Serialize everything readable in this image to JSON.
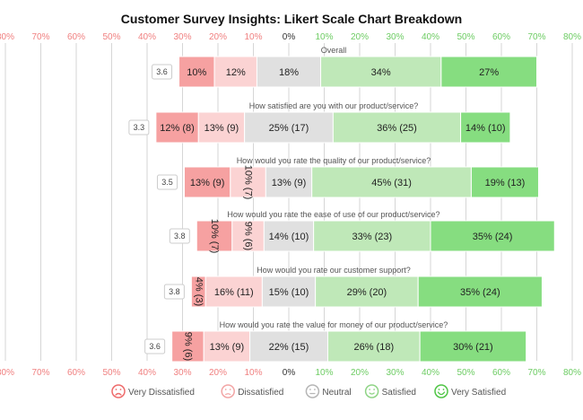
{
  "chart_data": {
    "type": "bar",
    "title": "Customer Survey Insights: Likert Scale Chart Breakdown",
    "xlim": [
      -80,
      80
    ],
    "tick_step": 10,
    "tick_format": "abs-percent",
    "grid": true,
    "legend_position": "bottom",
    "categories": [
      "Very Dissatisfied",
      "Dissatisfied",
      "Neutral",
      "Satisfied",
      "Very Satisfied"
    ],
    "colors": {
      "Very Dissatisfied": "#f6a1a1",
      "Dissatisfied": "#fbd3d3",
      "Neutral": "#e0e0e0",
      "Satisfied": "#bfe8b8",
      "Very Satisfied": "#86dd80",
      "negative_tick": "#f08080",
      "positive_tick": "#6dcc63",
      "zero_tick": "#333333"
    },
    "questions": [
      {
        "label": "Overall",
        "score": "3.6",
        "segments": [
          10,
          12,
          18,
          34,
          27
        ],
        "labels": [
          "10%",
          "12%",
          "18%",
          "34%",
          "27%"
        ]
      },
      {
        "label": "How satisfied are you with our product/service?",
        "score": "3.3",
        "segments": [
          12,
          13,
          25,
          36,
          14
        ],
        "labels": [
          "12% (8)",
          "13% (9)",
          "25% (17)",
          "36% (25)",
          "14% (10)"
        ]
      },
      {
        "label": "How would you rate the quality of our product/service?",
        "score": "3.5",
        "segments": [
          13,
          10,
          13,
          45,
          19
        ],
        "labels": [
          "13% (9)",
          "10% (7)",
          "13% (9)",
          "45% (31)",
          "19% (13)"
        ]
      },
      {
        "label": "How would you rate the ease of use of our product/service?",
        "score": "3.8",
        "segments": [
          10,
          9,
          14,
          33,
          35
        ],
        "labels": [
          "10% (7)",
          "9% (6)",
          "14% (10)",
          "33% (23)",
          "35% (24)"
        ]
      },
      {
        "label": "How would you rate our customer support?",
        "score": "3.8",
        "segments": [
          4,
          16,
          15,
          29,
          35
        ],
        "labels": [
          "4% (3)",
          "16% (11)",
          "15% (10)",
          "29% (20)",
          "35% (24)"
        ]
      },
      {
        "label": "How would you rate the value for money of our product/service?",
        "score": "3.6",
        "segments": [
          9,
          13,
          22,
          26,
          30
        ],
        "labels": [
          "9% (6)",
          "13% (9)",
          "22% (15)",
          "26% (18)",
          "30% (21)"
        ]
      }
    ]
  }
}
